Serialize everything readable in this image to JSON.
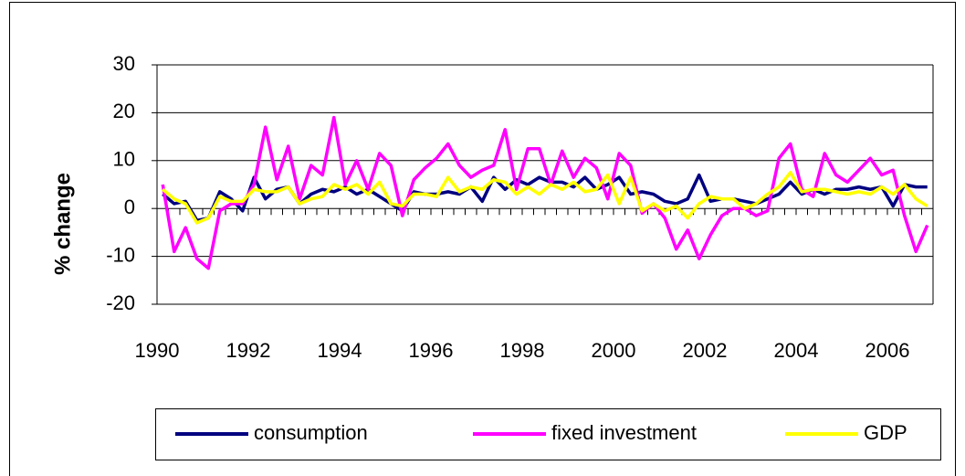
{
  "chart_data": {
    "type": "line",
    "y_label": "% change",
    "categories": [
      "1990",
      null,
      null,
      null,
      null,
      null,
      null,
      null,
      "1992",
      null,
      null,
      null,
      null,
      null,
      null,
      null,
      "1994",
      null,
      null,
      null,
      null,
      null,
      null,
      null,
      "1996",
      null,
      null,
      null,
      null,
      null,
      null,
      null,
      "1998",
      null,
      null,
      null,
      null,
      null,
      null,
      null,
      "2000",
      null,
      null,
      null,
      null,
      null,
      null,
      null,
      "2002",
      null,
      null,
      null,
      null,
      null,
      null,
      null,
      "2004",
      null,
      null,
      null,
      null,
      null,
      null,
      null,
      "2006",
      null,
      null,
      null
    ],
    "series": [
      {
        "name": "consumption",
        "color": "#000080",
        "values": [
          3,
          1,
          1.5,
          -2.5,
          -2,
          3.5,
          2,
          -0.5,
          6.5,
          2,
          4,
          4.5,
          1,
          3,
          4,
          3.5,
          4.5,
          3,
          4,
          2.5,
          1,
          -0.5,
          3.5,
          3,
          3,
          3.5,
          3,
          4.5,
          1.5,
          6.5,
          4,
          6,
          5,
          6.5,
          5.5,
          5.5,
          4.5,
          6.5,
          4,
          5,
          6.5,
          3,
          3.5,
          3,
          1.5,
          1,
          2,
          7,
          1.5,
          2,
          2,
          1.5,
          1,
          2,
          3,
          5.5,
          3,
          4,
          3,
          4,
          4,
          4.5,
          4,
          4.5,
          0.5,
          5,
          4.5,
          4.5
        ]
      },
      {
        "name": "fixed investment",
        "color": "#ff00ff",
        "values": [
          5,
          -9,
          -4,
          -10.5,
          -12.5,
          -0.5,
          1,
          1,
          5,
          17,
          6,
          13,
          2,
          9,
          7,
          19,
          5,
          10,
          4,
          11.5,
          9,
          -1.5,
          6,
          8.5,
          10.5,
          13.5,
          9,
          6.5,
          8,
          9,
          16.5,
          4,
          12.5,
          12.5,
          5,
          12,
          6.5,
          10.5,
          8.5,
          2,
          11.5,
          9,
          -1,
          1,
          -2,
          -8.5,
          -4.5,
          -10.5,
          -5.5,
          -1.5,
          0,
          0,
          -1.5,
          -0.5,
          10.5,
          13.5,
          4,
          2.5,
          11.5,
          7,
          5.5,
          8,
          10.5,
          7,
          8,
          -1.5,
          -9,
          -3.5
        ]
      },
      {
        "name": "GDP",
        "color": "#ffff00",
        "values": [
          4,
          2,
          1,
          -3,
          -2,
          2.5,
          1.5,
          1.5,
          4,
          3.5,
          3.5,
          4.5,
          1,
          2,
          2.5,
          5,
          4,
          5,
          3,
          5.5,
          1,
          0.5,
          3,
          3,
          2.5,
          6.5,
          3.5,
          4.5,
          4,
          6,
          5.5,
          3,
          4.5,
          3,
          5,
          4,
          5.5,
          3.5,
          4,
          7,
          1,
          6.5,
          -0.5,
          1,
          -0.5,
          0.5,
          -2,
          1,
          2.5,
          2,
          2,
          0,
          1,
          3,
          4.5,
          7.5,
          3.5,
          4,
          4,
          3.5,
          3,
          3.5,
          3,
          4.5,
          3,
          5,
          2,
          0.5
        ]
      }
    ],
    "ylim": [
      -20,
      30
    ],
    "yticks": [
      -20,
      -10,
      0,
      10,
      20,
      30
    ],
    "grid": true,
    "legend": "bottom"
  }
}
